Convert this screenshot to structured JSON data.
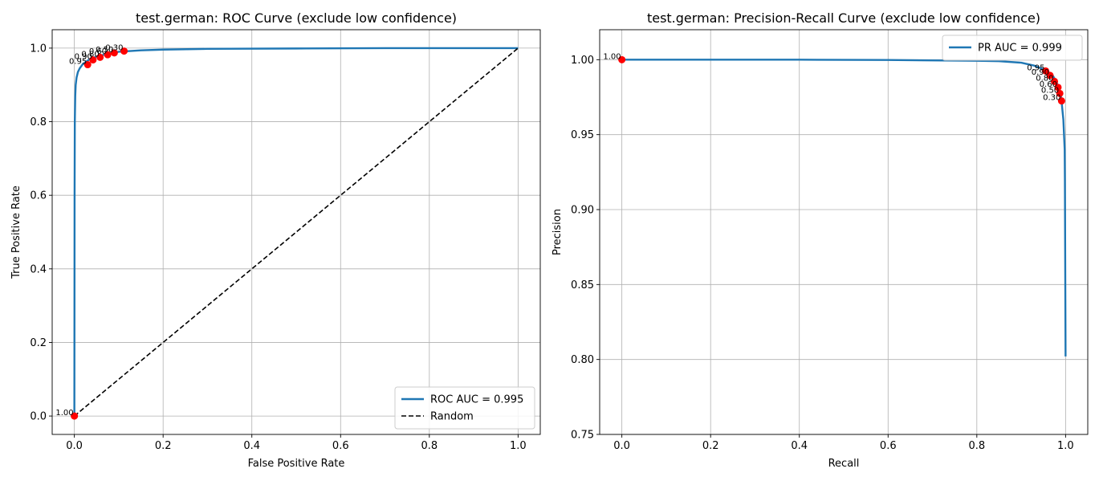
{
  "chart_data": [
    {
      "type": "line",
      "title": "test.german: ROC Curve (exclude low confidence)",
      "xlabel": "False Positive Rate",
      "ylabel": "True Positive Rate",
      "xlim": [
        -0.05,
        1.05
      ],
      "ylim": [
        -0.05,
        1.05
      ],
      "xticks": [
        "0.0",
        "0.2",
        "0.4",
        "0.6",
        "0.8",
        "1.0"
      ],
      "yticks": [
        "0.0",
        "0.2",
        "0.4",
        "0.6",
        "0.8",
        "1.0"
      ],
      "grid": true,
      "legend_position": "lower-right",
      "series": [
        {
          "name": "ROC AUC = 0.995",
          "color": "#1f77b4",
          "style": "solid",
          "x": [
            0.0,
            0.0005,
            0.001,
            0.002,
            0.003,
            0.005,
            0.008,
            0.012,
            0.018,
            0.025,
            0.035,
            0.05,
            0.07,
            0.1,
            0.15,
            0.2,
            0.3,
            0.5,
            0.7,
            1.0
          ],
          "y": [
            0.0,
            0.6,
            0.8,
            0.87,
            0.9,
            0.92,
            0.935,
            0.945,
            0.955,
            0.962,
            0.97,
            0.977,
            0.983,
            0.99,
            0.994,
            0.996,
            0.998,
            0.999,
            1.0,
            1.0
          ]
        },
        {
          "name": "Random",
          "color": "#000000",
          "style": "dashed",
          "x": [
            0.0,
            1.0
          ],
          "y": [
            0.0,
            1.0
          ]
        }
      ],
      "threshold_points": {
        "color": "#ff0000",
        "points": [
          {
            "x": 0.0,
            "y": 0.0,
            "label": "1.00"
          },
          {
            "x": 0.03,
            "y": 0.955,
            "label": "0.95"
          },
          {
            "x": 0.042,
            "y": 0.968,
            "label": "0.90"
          },
          {
            "x": 0.058,
            "y": 0.975,
            "label": "0.80"
          },
          {
            "x": 0.075,
            "y": 0.982,
            "label": "0.60"
          },
          {
            "x": 0.09,
            "y": 0.987,
            "label": "0.50"
          },
          {
            "x": 0.112,
            "y": 0.992,
            "label": "0.30"
          }
        ]
      }
    },
    {
      "type": "line",
      "title": "test.german: Precision-Recall Curve (exclude low confidence)",
      "xlabel": "Recall",
      "ylabel": "Precision",
      "xlim": [
        -0.05,
        1.05
      ],
      "ylim": [
        0.75,
        1.02
      ],
      "xticks": [
        "0.0",
        "0.2",
        "0.4",
        "0.6",
        "0.8",
        "1.0"
      ],
      "yticks": [
        "0.75",
        "0.80",
        "0.85",
        "0.90",
        "0.95",
        "1.00"
      ],
      "grid": true,
      "legend_position": "upper-right",
      "series": [
        {
          "name": "PR AUC = 0.999",
          "color": "#1f77b4",
          "style": "solid",
          "x": [
            0.0,
            0.2,
            0.4,
            0.6,
            0.8,
            0.85,
            0.9,
            0.93,
            0.955,
            0.97,
            0.98,
            0.99,
            0.995,
            0.998,
            0.9985,
            0.999,
            0.9995,
            1.0
          ],
          "y": [
            1.0,
            1.0,
            1.0,
            0.9998,
            0.9993,
            0.999,
            0.998,
            0.996,
            0.993,
            0.99,
            0.985,
            0.975,
            0.96,
            0.94,
            0.92,
            0.88,
            0.84,
            0.802
          ]
        }
      ],
      "threshold_points": {
        "color": "#ff0000",
        "points": [
          {
            "x": 0.0,
            "y": 1.0,
            "label": "1.00"
          },
          {
            "x": 0.955,
            "y": 0.9925,
            "label": "0.95"
          },
          {
            "x": 0.965,
            "y": 0.9895,
            "label": "0.90"
          },
          {
            "x": 0.975,
            "y": 0.9855,
            "label": "0.80"
          },
          {
            "x": 0.983,
            "y": 0.9815,
            "label": "0.60"
          },
          {
            "x": 0.987,
            "y": 0.9775,
            "label": "0.50"
          },
          {
            "x": 0.991,
            "y": 0.9725,
            "label": "0.30"
          }
        ]
      }
    }
  ]
}
